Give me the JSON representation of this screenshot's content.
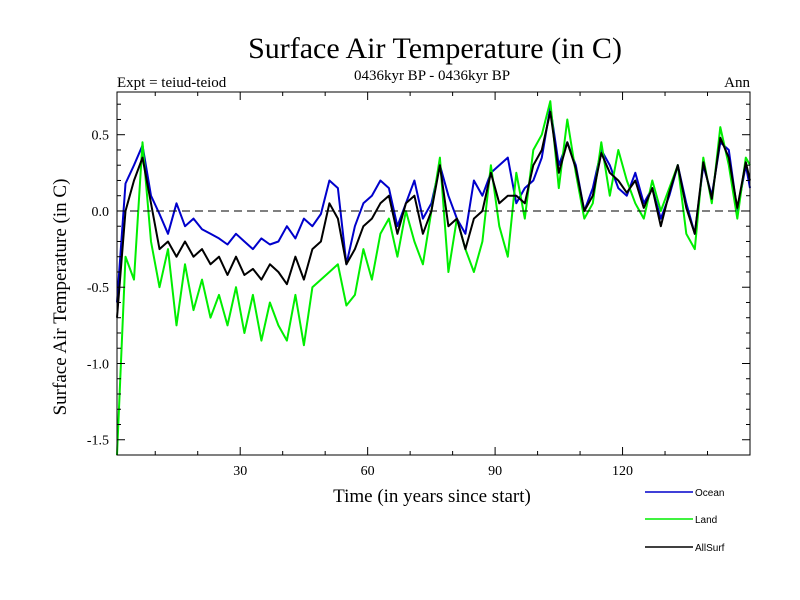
{
  "chart_data": {
    "type": "line",
    "title": "Surface Air Temperature (in C)",
    "subtitle": "0436kyr BP - 0436kyr BP",
    "expt_label": "Expt = teiud-teiod",
    "period_label": "Ann",
    "xlabel": "Time (in years since start)",
    "ylabel": "Surface Air Temperature (in C)",
    "xlim": [
      1,
      150
    ],
    "ylim": [
      -1.6,
      0.78
    ],
    "xticks": [
      30,
      60,
      90,
      120
    ],
    "xtick_labels": [
      "30",
      "60",
      "90",
      "120"
    ],
    "yticks": [
      0.5,
      0.0,
      -0.5,
      -1.0,
      -1.5
    ],
    "ytick_labels": [
      "0.5",
      "0.0",
      "-0.5",
      "-1.0",
      "-1.5"
    ],
    "zero_line": true,
    "grid": false,
    "legend_position": "bottom-right",
    "series": [
      {
        "name": "Ocean",
        "color": "#0000cc",
        "x": [
          1,
          3,
          5,
          7,
          9,
          11,
          13,
          15,
          17,
          19,
          21,
          23,
          25,
          27,
          29,
          31,
          33,
          35,
          37,
          39,
          41,
          43,
          45,
          47,
          49,
          51,
          53,
          55,
          57,
          59,
          61,
          63,
          65,
          67,
          69,
          71,
          73,
          75,
          77,
          79,
          81,
          83,
          85,
          87,
          89,
          91,
          93,
          95,
          97,
          99,
          101,
          103,
          105,
          107,
          109,
          111,
          113,
          115,
          117,
          119,
          121,
          123,
          125,
          127,
          129,
          131,
          133,
          135,
          137,
          139,
          141,
          143,
          145,
          147,
          149,
          150
        ],
        "values": [
          -0.6,
          0.18,
          0.3,
          0.43,
          0.1,
          -0.02,
          -0.15,
          0.05,
          -0.1,
          -0.05,
          -0.12,
          -0.15,
          -0.18,
          -0.22,
          -0.15,
          -0.2,
          -0.25,
          -0.18,
          -0.22,
          -0.2,
          -0.1,
          -0.18,
          -0.05,
          -0.1,
          -0.02,
          0.2,
          0.15,
          -0.35,
          -0.1,
          0.05,
          0.1,
          0.2,
          0.15,
          -0.1,
          0.05,
          0.2,
          -0.05,
          0.05,
          0.3,
          0.1,
          -0.05,
          -0.15,
          0.2,
          0.1,
          0.25,
          0.3,
          0.35,
          0.05,
          0.15,
          0.2,
          0.35,
          0.68,
          0.3,
          0.45,
          0.3,
          0.0,
          0.15,
          0.4,
          0.3,
          0.15,
          0.1,
          0.25,
          0.05,
          0.15,
          -0.05,
          0.1,
          0.3,
          0.05,
          -0.15,
          0.3,
          0.1,
          0.45,
          0.4,
          0.0,
          0.3,
          0.15
        ]
      },
      {
        "name": "Land",
        "color": "#00ee00",
        "x": [
          1,
          3,
          5,
          7,
          9,
          11,
          13,
          15,
          17,
          19,
          21,
          23,
          25,
          27,
          29,
          31,
          33,
          35,
          37,
          39,
          41,
          43,
          45,
          47,
          49,
          51,
          53,
          55,
          57,
          59,
          61,
          63,
          65,
          67,
          69,
          71,
          73,
          75,
          77,
          79,
          81,
          83,
          85,
          87,
          89,
          91,
          93,
          95,
          97,
          99,
          101,
          103,
          105,
          107,
          109,
          111,
          113,
          115,
          117,
          119,
          121,
          123,
          125,
          127,
          129,
          131,
          133,
          135,
          137,
          139,
          141,
          143,
          145,
          147,
          149,
          150
        ],
        "values": [
          -1.6,
          -0.3,
          -0.45,
          0.45,
          -0.2,
          -0.5,
          -0.25,
          -0.75,
          -0.35,
          -0.65,
          -0.45,
          -0.7,
          -0.55,
          -0.75,
          -0.5,
          -0.8,
          -0.55,
          -0.85,
          -0.6,
          -0.75,
          -0.85,
          -0.55,
          -0.88,
          -0.5,
          -0.45,
          -0.4,
          -0.35,
          -0.62,
          -0.55,
          -0.25,
          -0.45,
          -0.15,
          -0.05,
          -0.3,
          0.0,
          -0.2,
          -0.35,
          0.0,
          0.35,
          -0.4,
          -0.05,
          -0.25,
          -0.4,
          -0.2,
          0.3,
          -0.1,
          -0.3,
          0.25,
          -0.05,
          0.4,
          0.5,
          0.72,
          0.15,
          0.6,
          0.25,
          -0.05,
          0.05,
          0.45,
          0.1,
          0.4,
          0.2,
          0.05,
          -0.05,
          0.2,
          0.0,
          0.15,
          0.3,
          -0.15,
          -0.25,
          0.35,
          0.05,
          0.55,
          0.3,
          -0.05,
          0.35,
          0.3
        ]
      },
      {
        "name": "AllSurf",
        "color": "#000000",
        "x": [
          1,
          3,
          5,
          7,
          9,
          11,
          13,
          15,
          17,
          19,
          21,
          23,
          25,
          27,
          29,
          31,
          33,
          35,
          37,
          39,
          41,
          43,
          45,
          47,
          49,
          51,
          53,
          55,
          57,
          59,
          61,
          63,
          65,
          67,
          69,
          71,
          73,
          75,
          77,
          79,
          81,
          83,
          85,
          87,
          89,
          91,
          93,
          95,
          97,
          99,
          101,
          103,
          105,
          107,
          109,
          111,
          113,
          115,
          117,
          119,
          121,
          123,
          125,
          127,
          129,
          131,
          133,
          135,
          137,
          139,
          141,
          143,
          145,
          147,
          149,
          150
        ],
        "values": [
          -0.7,
          0.0,
          0.2,
          0.35,
          0.05,
          -0.25,
          -0.2,
          -0.3,
          -0.2,
          -0.3,
          -0.25,
          -0.35,
          -0.3,
          -0.42,
          -0.3,
          -0.42,
          -0.38,
          -0.45,
          -0.35,
          -0.4,
          -0.48,
          -0.3,
          -0.45,
          -0.25,
          -0.2,
          0.05,
          -0.05,
          -0.35,
          -0.25,
          -0.1,
          -0.05,
          0.05,
          0.1,
          -0.15,
          0.05,
          0.1,
          -0.15,
          0.0,
          0.3,
          -0.1,
          -0.05,
          -0.25,
          -0.05,
          0.0,
          0.25,
          0.05,
          0.1,
          0.1,
          0.05,
          0.3,
          0.4,
          0.65,
          0.25,
          0.45,
          0.28,
          0.0,
          0.1,
          0.38,
          0.25,
          0.2,
          0.12,
          0.2,
          0.02,
          0.15,
          -0.1,
          0.12,
          0.3,
          0.02,
          -0.15,
          0.32,
          0.08,
          0.48,
          0.35,
          0.02,
          0.32,
          0.2
        ]
      }
    ]
  }
}
